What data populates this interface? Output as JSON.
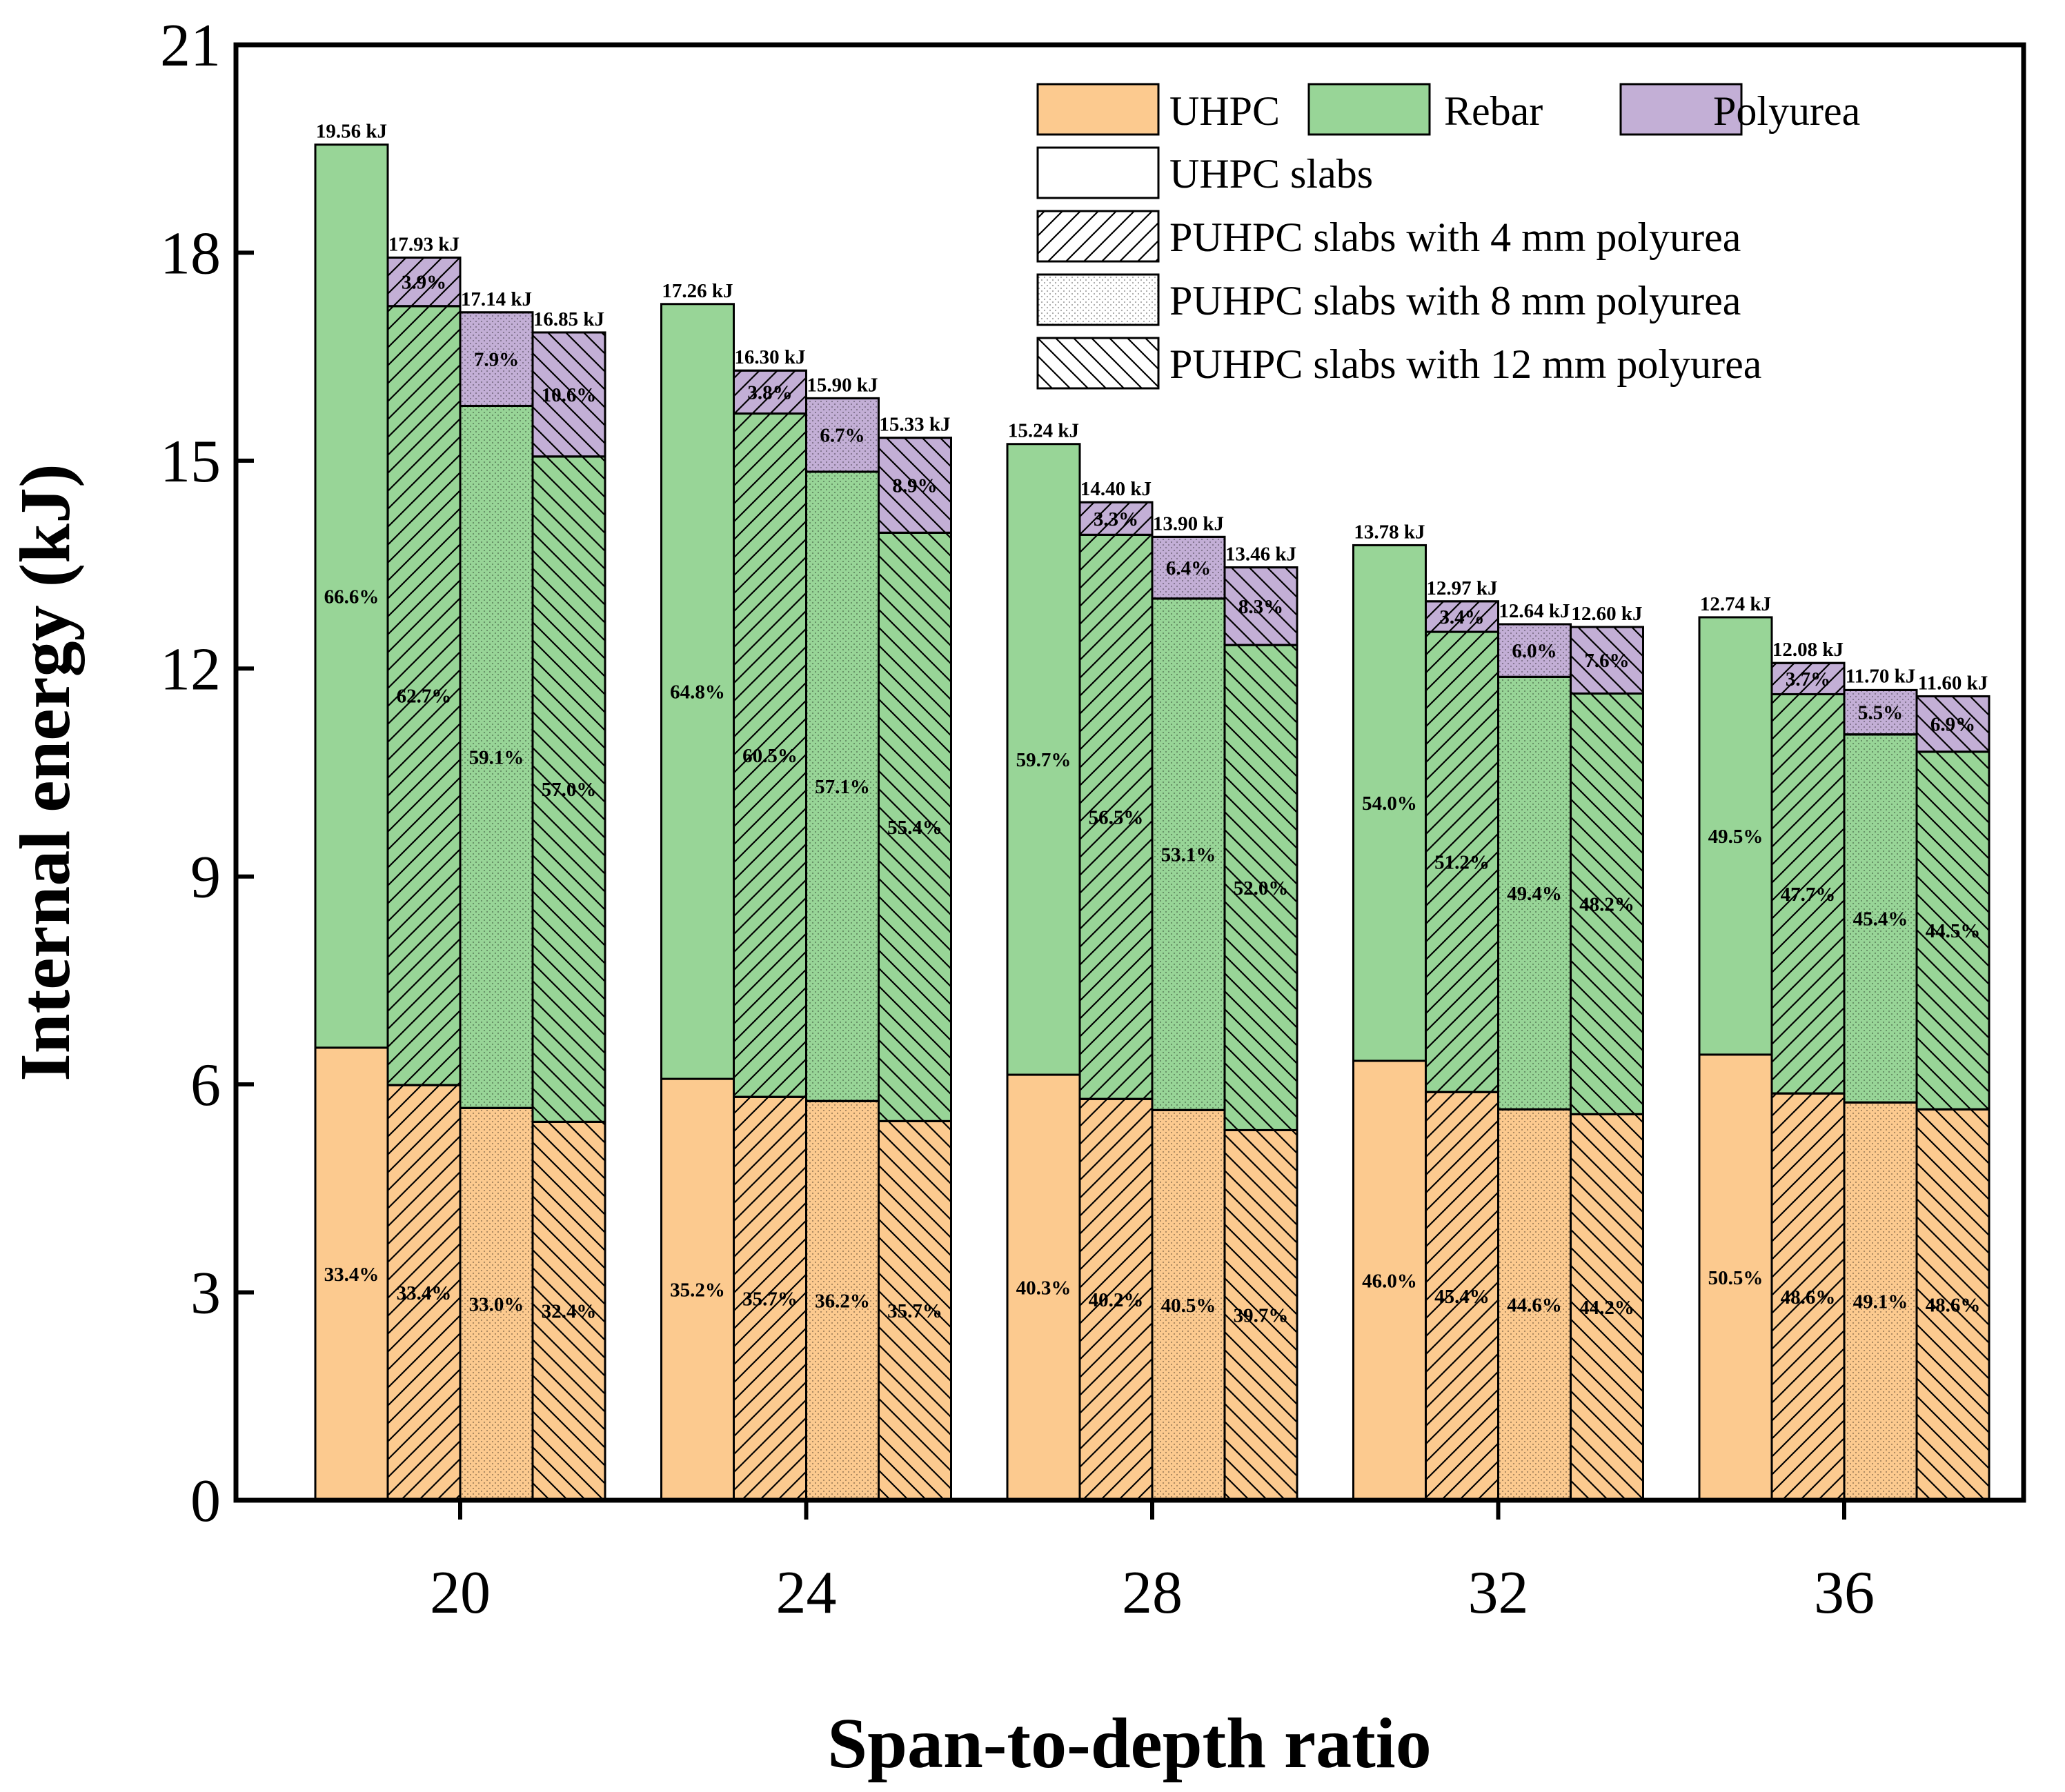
{
  "chart_data": {
    "type": "bar",
    "stacked": true,
    "grouped": true,
    "title": "",
    "xlabel": "Span-to-depth ratio",
    "ylabel": "Internal energy (kJ)",
    "ylim": [
      0,
      21
    ],
    "yticks": [
      "0",
      "3",
      "6",
      "9",
      "12",
      "15",
      "18",
      "21"
    ],
    "categories": [
      "20",
      "24",
      "28",
      "32",
      "36"
    ],
    "components": [
      "UHPC",
      "Rebar",
      "Polyurea"
    ],
    "component_colors": {
      "UHPC": "#fcca8f",
      "Rebar": "#98d597",
      "Polyurea": "#c3afd6"
    },
    "slab_types": [
      "UHPC slabs",
      "PUHPC slabs with 4 mm polyurea",
      "PUHPC slabs with 8 mm polyurea",
      "PUHPC slabs with 12 mm polyurea"
    ],
    "slab_patterns": [
      "solid",
      "diagonal",
      "dots",
      "backdiagonal"
    ],
    "groups": [
      {
        "category": "20",
        "bars": [
          {
            "slab": "UHPC slabs",
            "total": 19.56,
            "total_label": "19.56 kJ",
            "uhpc": 6.53,
            "rebar": 13.03,
            "polyurea": 0,
            "uhpc_pct": "33.4%",
            "rebar_pct": "66.6%",
            "polyurea_pct": ""
          },
          {
            "slab": "PUHPC slabs with 4 mm polyurea",
            "total": 17.93,
            "total_label": "17.93 kJ",
            "uhpc": 5.99,
            "rebar": 11.24,
            "polyurea": 0.7,
            "uhpc_pct": "33.4%",
            "rebar_pct": "62.7%",
            "polyurea_pct": "3.9%"
          },
          {
            "slab": "PUHPC slabs with 8 mm polyurea",
            "total": 17.14,
            "total_label": "17.14 kJ",
            "uhpc": 5.66,
            "rebar": 10.13,
            "polyurea": 1.35,
            "uhpc_pct": "33.0%",
            "rebar_pct": "59.1%",
            "polyurea_pct": "7.9%"
          },
          {
            "slab": "PUHPC slabs with 12 mm polyurea",
            "total": 16.85,
            "total_label": "16.85 kJ",
            "uhpc": 5.46,
            "rebar": 9.6,
            "polyurea": 1.79,
            "uhpc_pct": "32.4%",
            "rebar_pct": "57.0%",
            "polyurea_pct": "10.6%"
          }
        ]
      },
      {
        "category": "24",
        "bars": [
          {
            "slab": "UHPC slabs",
            "total": 17.26,
            "total_label": "17.26 kJ",
            "uhpc": 6.08,
            "rebar": 11.18,
            "polyurea": 0,
            "uhpc_pct": "35.2%",
            "rebar_pct": "64.8%",
            "polyurea_pct": ""
          },
          {
            "slab": "PUHPC slabs with 4 mm polyurea",
            "total": 16.3,
            "total_label": "16.30 kJ",
            "uhpc": 5.82,
            "rebar": 9.86,
            "polyurea": 0.62,
            "uhpc_pct": "35.7%",
            "rebar_pct": "60.5%",
            "polyurea_pct": "3.8%"
          },
          {
            "slab": "PUHPC slabs with 8 mm polyurea",
            "total": 15.9,
            "total_label": "15.90 kJ",
            "uhpc": 5.76,
            "rebar": 9.08,
            "polyurea": 1.06,
            "uhpc_pct": "36.2%",
            "rebar_pct": "57.1%",
            "polyurea_pct": "6.7%"
          },
          {
            "slab": "PUHPC slabs with 12 mm polyurea",
            "total": 15.33,
            "total_label": "15.33 kJ",
            "uhpc": 5.47,
            "rebar": 8.49,
            "polyurea": 1.37,
            "uhpc_pct": "35.7%",
            "rebar_pct": "55.4%",
            "polyurea_pct": "8.9%"
          }
        ]
      },
      {
        "category": "28",
        "bars": [
          {
            "slab": "UHPC slabs",
            "total": 15.24,
            "total_label": "15.24 kJ",
            "uhpc": 6.14,
            "rebar": 9.1,
            "polyurea": 0,
            "uhpc_pct": "40.3%",
            "rebar_pct": "59.7%",
            "polyurea_pct": ""
          },
          {
            "slab": "PUHPC slabs with 4 mm polyurea",
            "total": 14.4,
            "total_label": "14.40 kJ",
            "uhpc": 5.79,
            "rebar": 8.14,
            "polyurea": 0.47,
            "uhpc_pct": "40.2%",
            "rebar_pct": "56.5%",
            "polyurea_pct": "3.3%"
          },
          {
            "slab": "PUHPC slabs with 8 mm polyurea",
            "total": 13.9,
            "total_label": "13.90 kJ",
            "uhpc": 5.63,
            "rebar": 7.38,
            "polyurea": 0.89,
            "uhpc_pct": "40.5%",
            "rebar_pct": "53.1%",
            "polyurea_pct": "6.4%"
          },
          {
            "slab": "PUHPC slabs with 12 mm polyurea",
            "total": 13.46,
            "total_label": "13.46 kJ",
            "uhpc": 5.34,
            "rebar": 7.0,
            "polyurea": 1.12,
            "uhpc_pct": "39.7%",
            "rebar_pct": "52.0%",
            "polyurea_pct": "8.3%"
          }
        ]
      },
      {
        "category": "32",
        "bars": [
          {
            "slab": "UHPC slabs",
            "total": 13.78,
            "total_label": "13.78 kJ",
            "uhpc": 6.34,
            "rebar": 7.44,
            "polyurea": 0,
            "uhpc_pct": "46.0%",
            "rebar_pct": "54.0%",
            "polyurea_pct": ""
          },
          {
            "slab": "PUHPC slabs with 4 mm polyurea",
            "total": 12.97,
            "total_label": "12.97 kJ",
            "uhpc": 5.89,
            "rebar": 6.64,
            "polyurea": 0.44,
            "uhpc_pct": "45.4%",
            "rebar_pct": "51.2%",
            "polyurea_pct": "3.4%"
          },
          {
            "slab": "PUHPC slabs with 8 mm polyurea",
            "total": 12.64,
            "total_label": "12.64 kJ",
            "uhpc": 5.64,
            "rebar": 6.24,
            "polyurea": 0.76,
            "uhpc_pct": "44.6%",
            "rebar_pct": "49.4%",
            "polyurea_pct": "6.0%"
          },
          {
            "slab": "PUHPC slabs with 12 mm polyurea",
            "total": 12.6,
            "total_label": "12.60 kJ",
            "uhpc": 5.57,
            "rebar": 6.07,
            "polyurea": 0.96,
            "uhpc_pct": "44.2%",
            "rebar_pct": "48.2%",
            "polyurea_pct": "7.6%"
          }
        ]
      },
      {
        "category": "36",
        "bars": [
          {
            "slab": "UHPC slabs",
            "total": 12.74,
            "total_label": "12.74 kJ",
            "uhpc": 6.43,
            "rebar": 6.31,
            "polyurea": 0,
            "uhpc_pct": "50.5%",
            "rebar_pct": "49.5%",
            "polyurea_pct": ""
          },
          {
            "slab": "PUHPC slabs with 4 mm polyurea",
            "total": 12.08,
            "total_label": "12.08 kJ",
            "uhpc": 5.87,
            "rebar": 5.76,
            "polyurea": 0.45,
            "uhpc_pct": "48.6%",
            "rebar_pct": "47.7%",
            "polyurea_pct": "3.7%"
          },
          {
            "slab": "PUHPC slabs with 8 mm polyurea",
            "total": 11.7,
            "total_label": "11.70 kJ",
            "uhpc": 5.74,
            "rebar": 5.31,
            "polyurea": 0.64,
            "uhpc_pct": "49.1%",
            "rebar_pct": "45.4%",
            "polyurea_pct": "5.5%"
          },
          {
            "slab": "PUHPC slabs with 12 mm polyurea",
            "total": 11.6,
            "total_label": "11.60 kJ",
            "uhpc": 5.64,
            "rebar": 5.16,
            "polyurea": 0.8,
            "uhpc_pct": "48.6%",
            "rebar_pct": "44.5%",
            "polyurea_pct": "6.9%"
          }
        ]
      }
    ],
    "legend": {
      "position": "top-right",
      "components": [
        "UHPC",
        "Rebar",
        "Polyurea"
      ],
      "slab_types": [
        "UHPC slabs",
        "PUHPC slabs with 4 mm polyurea",
        "PUHPC slabs with 8 mm polyurea",
        "PUHPC slabs with 12 mm polyurea"
      ]
    }
  }
}
